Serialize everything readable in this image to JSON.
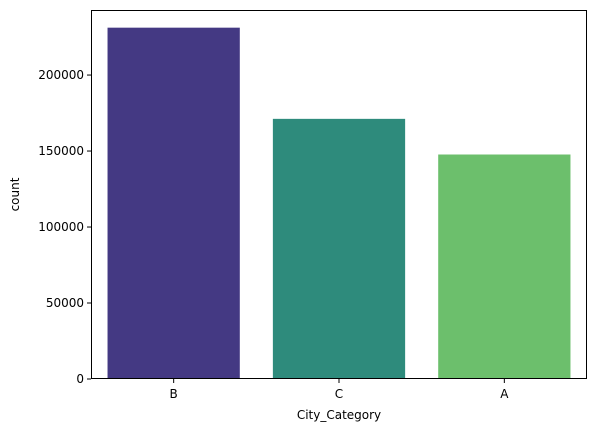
{
  "chart_data": {
    "type": "bar",
    "categories": [
      "B",
      "C",
      "A"
    ],
    "values": [
      231173,
      171175,
      147720
    ],
    "colors": [
      "#443983",
      "#2e8b7c",
      "#6cbf6c"
    ],
    "xlabel": "City_Category",
    "ylabel": "count",
    "ylim": [
      0,
      242800
    ],
    "yticks": [
      0,
      50000,
      100000,
      150000,
      200000
    ],
    "ytick_labels": [
      "0",
      "50000",
      "100000",
      "150000",
      "200000"
    ],
    "grid": false,
    "legend": false
  }
}
